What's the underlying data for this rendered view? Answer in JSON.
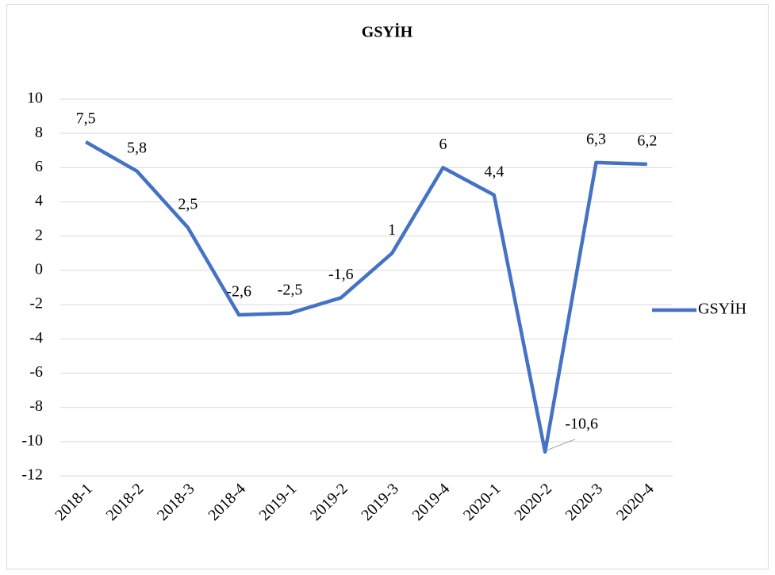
{
  "chart_data": {
    "type": "line",
    "title": "GSYİH",
    "categories": [
      "2018-1",
      "2018-2",
      "2018-3",
      "2018-4",
      "2019-1",
      "2019-2",
      "2019-3",
      "2019-4",
      "2020-1",
      "2020-2",
      "2020-3",
      "2020-4"
    ],
    "series": [
      {
        "name": "GSYİH",
        "color": "#4472c4",
        "values": [
          7.5,
          5.8,
          2.5,
          -2.6,
          -2.5,
          -1.6,
          1,
          6,
          4.4,
          -10.6,
          6.3,
          6.2
        ],
        "value_labels": [
          "7,5",
          "5,8",
          "2,5",
          "-2,6",
          "-2,5",
          "-1,6",
          "1",
          "6",
          "4,4",
          "-10,6",
          "6,3",
          "6,2"
        ]
      }
    ],
    "ylim": [
      -12,
      10
    ],
    "yticks": [
      -12,
      -10,
      -8,
      -6,
      -4,
      -2,
      0,
      2,
      4,
      6,
      8,
      10
    ],
    "grid": true,
    "legend": "right"
  }
}
